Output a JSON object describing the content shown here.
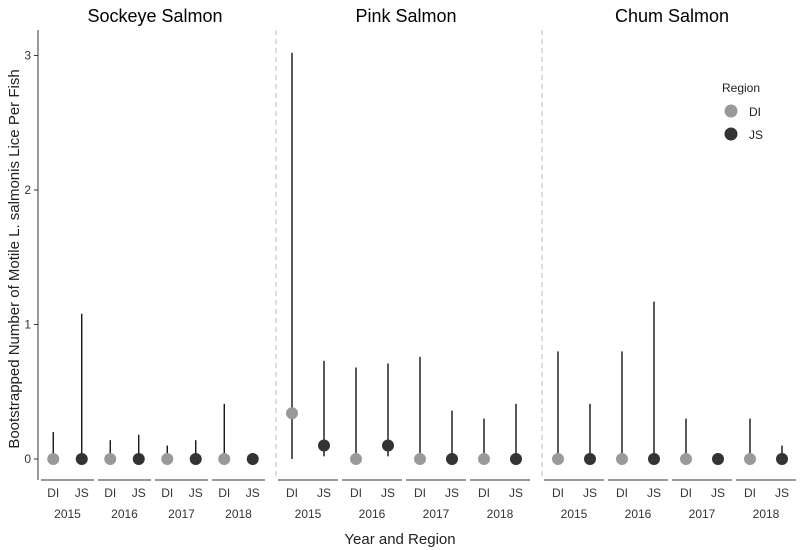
{
  "chart_data": {
    "type": "scatter",
    "subtype": "point-with-error-range",
    "xlabel": "Year and Region",
    "ylabel": "Bootstrapped Number of Motile L. salmonis Lice Per Fish",
    "ylim": [
      0,
      3.1
    ],
    "yticks": [
      0,
      1,
      2,
      3
    ],
    "grid": false,
    "legend": {
      "title": "Region",
      "placement": "top-right",
      "entries": [
        {
          "label": "DI",
          "color": "#999999"
        },
        {
          "label": "JS",
          "color": "#333333"
        }
      ]
    },
    "years": [
      "2015",
      "2016",
      "2017",
      "2018"
    ],
    "regions": [
      "DI",
      "JS"
    ],
    "panels": [
      {
        "title": "Sockeye Salmon",
        "points": [
          {
            "year": "2015",
            "region": "DI",
            "y": 0.0,
            "lo": 0.0,
            "hi": 0.2
          },
          {
            "year": "2015",
            "region": "JS",
            "y": 0.0,
            "lo": 0.0,
            "hi": 1.08
          },
          {
            "year": "2016",
            "region": "DI",
            "y": 0.0,
            "lo": 0.0,
            "hi": 0.14
          },
          {
            "year": "2016",
            "region": "JS",
            "y": 0.0,
            "lo": 0.0,
            "hi": 0.18
          },
          {
            "year": "2017",
            "region": "DI",
            "y": 0.0,
            "lo": 0.0,
            "hi": 0.1
          },
          {
            "year": "2017",
            "region": "JS",
            "y": 0.0,
            "lo": 0.0,
            "hi": 0.14
          },
          {
            "year": "2018",
            "region": "DI",
            "y": 0.0,
            "lo": 0.0,
            "hi": 0.41
          },
          {
            "year": "2018",
            "region": "JS",
            "y": 0.0,
            "lo": 0.0,
            "hi": 0.0
          }
        ]
      },
      {
        "title": "Pink Salmon",
        "points": [
          {
            "year": "2015",
            "region": "DI",
            "y": 0.34,
            "lo": 0.0,
            "hi": 3.02
          },
          {
            "year": "2015",
            "region": "JS",
            "y": 0.1,
            "lo": 0.02,
            "hi": 0.73
          },
          {
            "year": "2016",
            "region": "DI",
            "y": 0.0,
            "lo": 0.0,
            "hi": 0.68
          },
          {
            "year": "2016",
            "region": "JS",
            "y": 0.1,
            "lo": 0.02,
            "hi": 0.71
          },
          {
            "year": "2017",
            "region": "DI",
            "y": 0.0,
            "lo": 0.0,
            "hi": 0.76
          },
          {
            "year": "2017",
            "region": "JS",
            "y": 0.0,
            "lo": 0.0,
            "hi": 0.36
          },
          {
            "year": "2018",
            "region": "DI",
            "y": 0.0,
            "lo": 0.0,
            "hi": 0.3
          },
          {
            "year": "2018",
            "region": "JS",
            "y": 0.0,
            "lo": 0.0,
            "hi": 0.41
          }
        ]
      },
      {
        "title": "Chum Salmon",
        "points": [
          {
            "year": "2015",
            "region": "DI",
            "y": 0.0,
            "lo": 0.0,
            "hi": 0.8
          },
          {
            "year": "2015",
            "region": "JS",
            "y": 0.0,
            "lo": 0.0,
            "hi": 0.41
          },
          {
            "year": "2016",
            "region": "DI",
            "y": 0.0,
            "lo": 0.0,
            "hi": 0.8
          },
          {
            "year": "2016",
            "region": "JS",
            "y": 0.0,
            "lo": 0.0,
            "hi": 1.17
          },
          {
            "year": "2017",
            "region": "DI",
            "y": 0.0,
            "lo": 0.0,
            "hi": 0.3
          },
          {
            "year": "2017",
            "region": "JS",
            "y": 0.0,
            "lo": 0.0,
            "hi": 0.0
          },
          {
            "year": "2018",
            "region": "DI",
            "y": 0.0,
            "lo": 0.0,
            "hi": 0.3
          },
          {
            "year": "2018",
            "region": "JS",
            "y": 0.0,
            "lo": 0.0,
            "hi": 0.1
          }
        ]
      }
    ]
  }
}
